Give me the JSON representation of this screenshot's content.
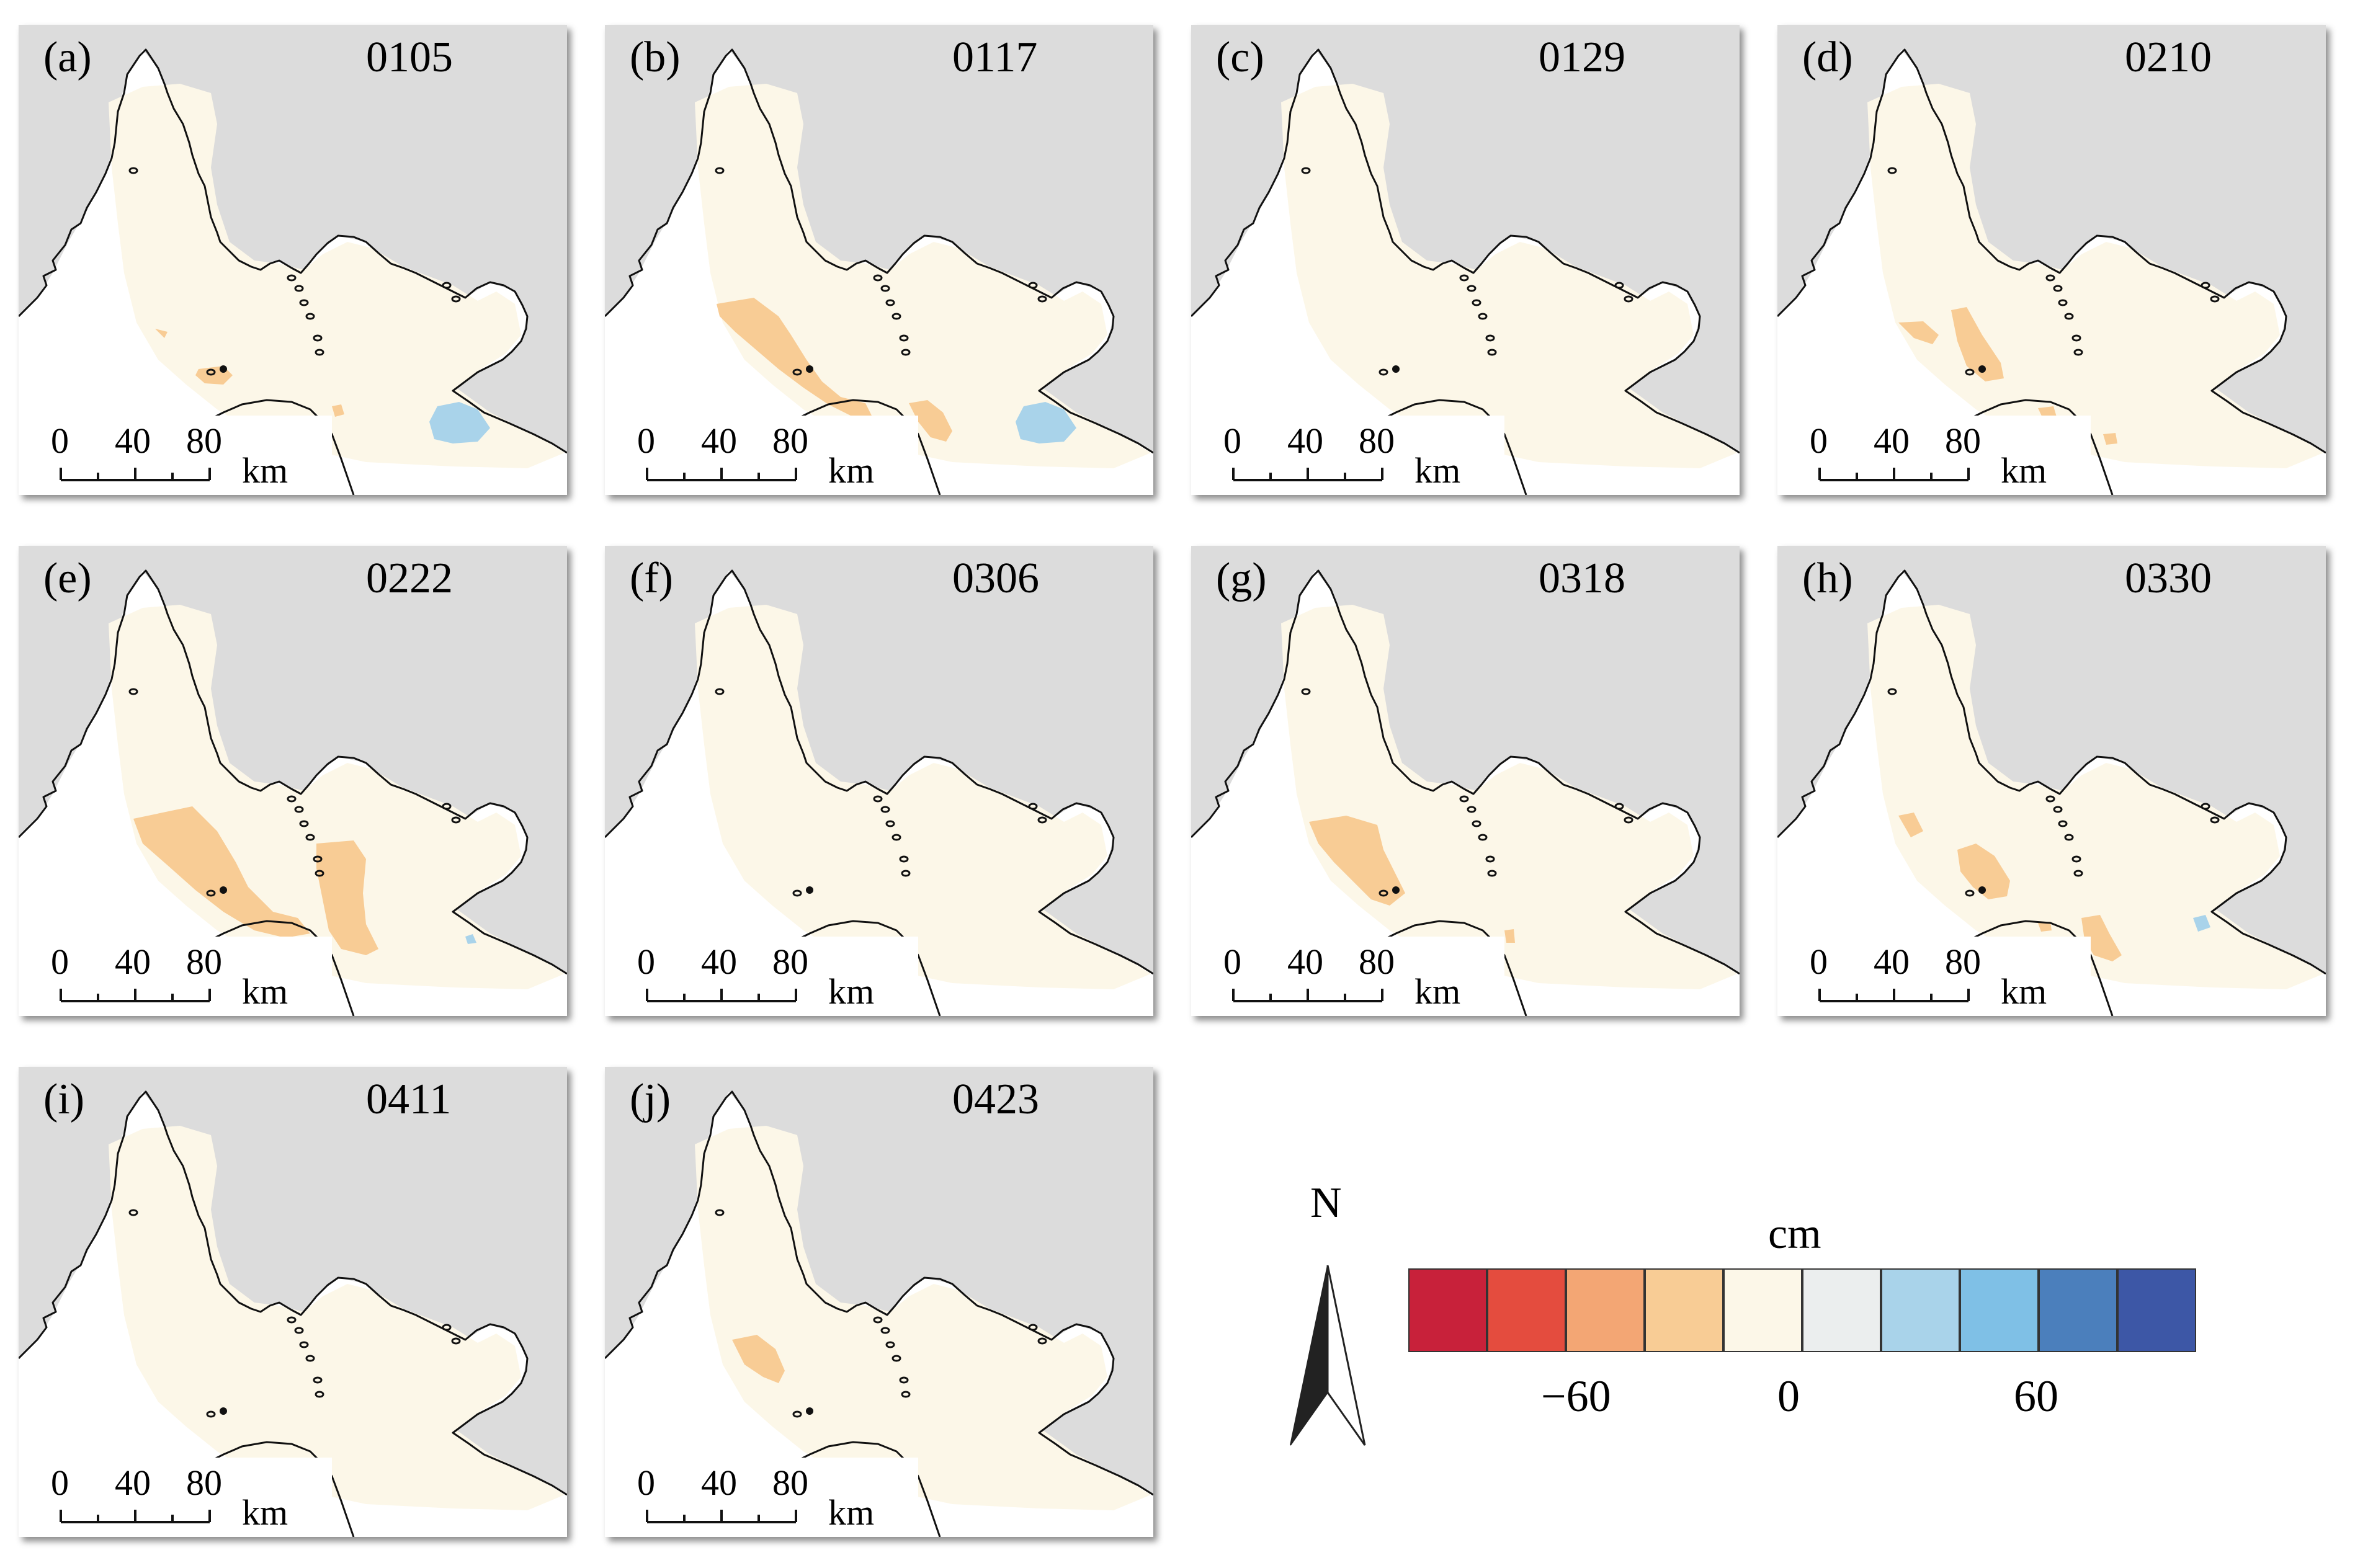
{
  "panels": [
    {
      "label": "(a)",
      "date": "0105",
      "patches": [
        "p_orange_small_sw",
        "p_orange_dot",
        "p_blue_se"
      ]
    },
    {
      "label": "(b)",
      "date": "0117",
      "patches": [
        "p_orange_band",
        "p_orange_coast",
        "p_blue_se"
      ]
    },
    {
      "label": "(c)",
      "date": "0129",
      "patches": []
    },
    {
      "label": "(d)",
      "date": "0210",
      "patches": [
        "p_orange_two",
        "p_orange_dot2"
      ]
    },
    {
      "label": "(e)",
      "date": "0222",
      "patches": [
        "p_orange_big",
        "p_orange_east",
        "p_blue_tiny"
      ]
    },
    {
      "label": "(f)",
      "date": "0306",
      "patches": []
    },
    {
      "label": "(g)",
      "date": "0318",
      "patches": [
        "p_orange_g"
      ]
    },
    {
      "label": "(h)",
      "date": "0330",
      "patches": [
        "p_orange_h1",
        "p_orange_h2",
        "p_blue_h"
      ]
    },
    {
      "label": "(i)",
      "date": "0411",
      "patches": []
    },
    {
      "label": "(j)",
      "date": "0423",
      "patches": [
        "p_orange_j"
      ]
    }
  ],
  "scale_bar": {
    "ticks": [
      "0",
      "40",
      "80"
    ],
    "unit": "km"
  },
  "north_arrow": {
    "label": "N"
  },
  "legend": {
    "unit": "cm",
    "colors": [
      "#c8213a",
      "#e44c3e",
      "#f3a674",
      "#f8cc95",
      "#fcf7e8",
      "#ebeeee",
      "#a9d3ea",
      "#7fc0e6",
      "#4b7fbc",
      "#3d57a6"
    ],
    "tick_labels": [
      "−60",
      "0",
      "60"
    ],
    "tick_values": [
      -60,
      0,
      60
    ],
    "range": [
      -100,
      100
    ]
  }
}
